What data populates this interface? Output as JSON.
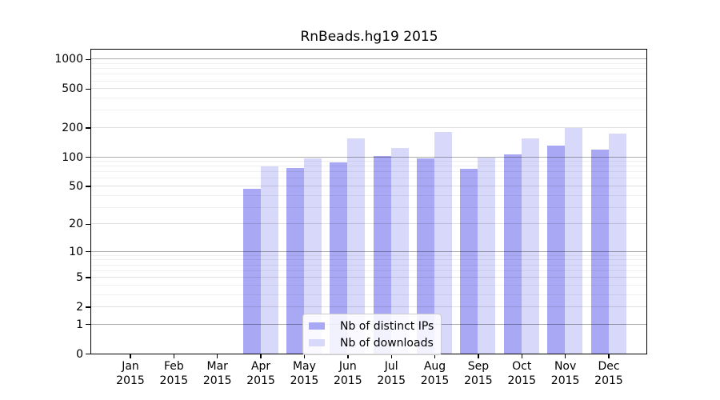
{
  "chart_data": {
    "type": "bar",
    "title": "RnBeads.hg19 2015",
    "categories": [
      {
        "month": "Jan",
        "year": "2015"
      },
      {
        "month": "Feb",
        "year": "2015"
      },
      {
        "month": "Mar",
        "year": "2015"
      },
      {
        "month": "Apr",
        "year": "2015"
      },
      {
        "month": "May",
        "year": "2015"
      },
      {
        "month": "Jun",
        "year": "2015"
      },
      {
        "month": "Jul",
        "year": "2015"
      },
      {
        "month": "Aug",
        "year": "2015"
      },
      {
        "month": "Sep",
        "year": "2015"
      },
      {
        "month": "Oct",
        "year": "2015"
      },
      {
        "month": "Nov",
        "year": "2015"
      },
      {
        "month": "Dec",
        "year": "2015"
      }
    ],
    "series": [
      {
        "name": "Nb of distinct IPs",
        "color": "#a8a8f4",
        "values": [
          0,
          0,
          0,
          47,
          77,
          87,
          102,
          96,
          75,
          106,
          130,
          119
        ]
      },
      {
        "name": "Nb of downloads",
        "color": "#d8d8fa",
        "values": [
          0,
          0,
          0,
          80,
          97,
          156,
          124,
          179,
          99,
          154,
          198,
          173
        ]
      }
    ],
    "yscale": "log1p",
    "yticks": [
      0,
      1,
      2,
      5,
      10,
      20,
      50,
      100,
      200,
      500,
      1000
    ],
    "ylim_max": 1250,
    "xlabel": "",
    "ylabel": "",
    "grid": true,
    "legend_position": "lower-center"
  }
}
